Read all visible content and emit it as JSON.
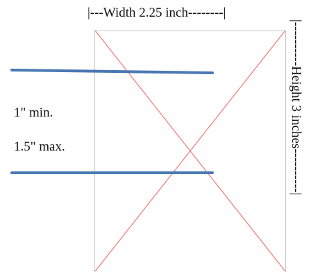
{
  "diagram": {
    "width_label": "|---Width 2.25 inch--------|",
    "height_label": "|----------Height 3 inches----------|",
    "min_label": "1\" min.",
    "max_label": "1.5\" max."
  },
  "colors": {
    "frame": "#c8c8c8",
    "diagonal": "#f07878",
    "guide": "#4a78b4",
    "text": "#111111"
  }
}
